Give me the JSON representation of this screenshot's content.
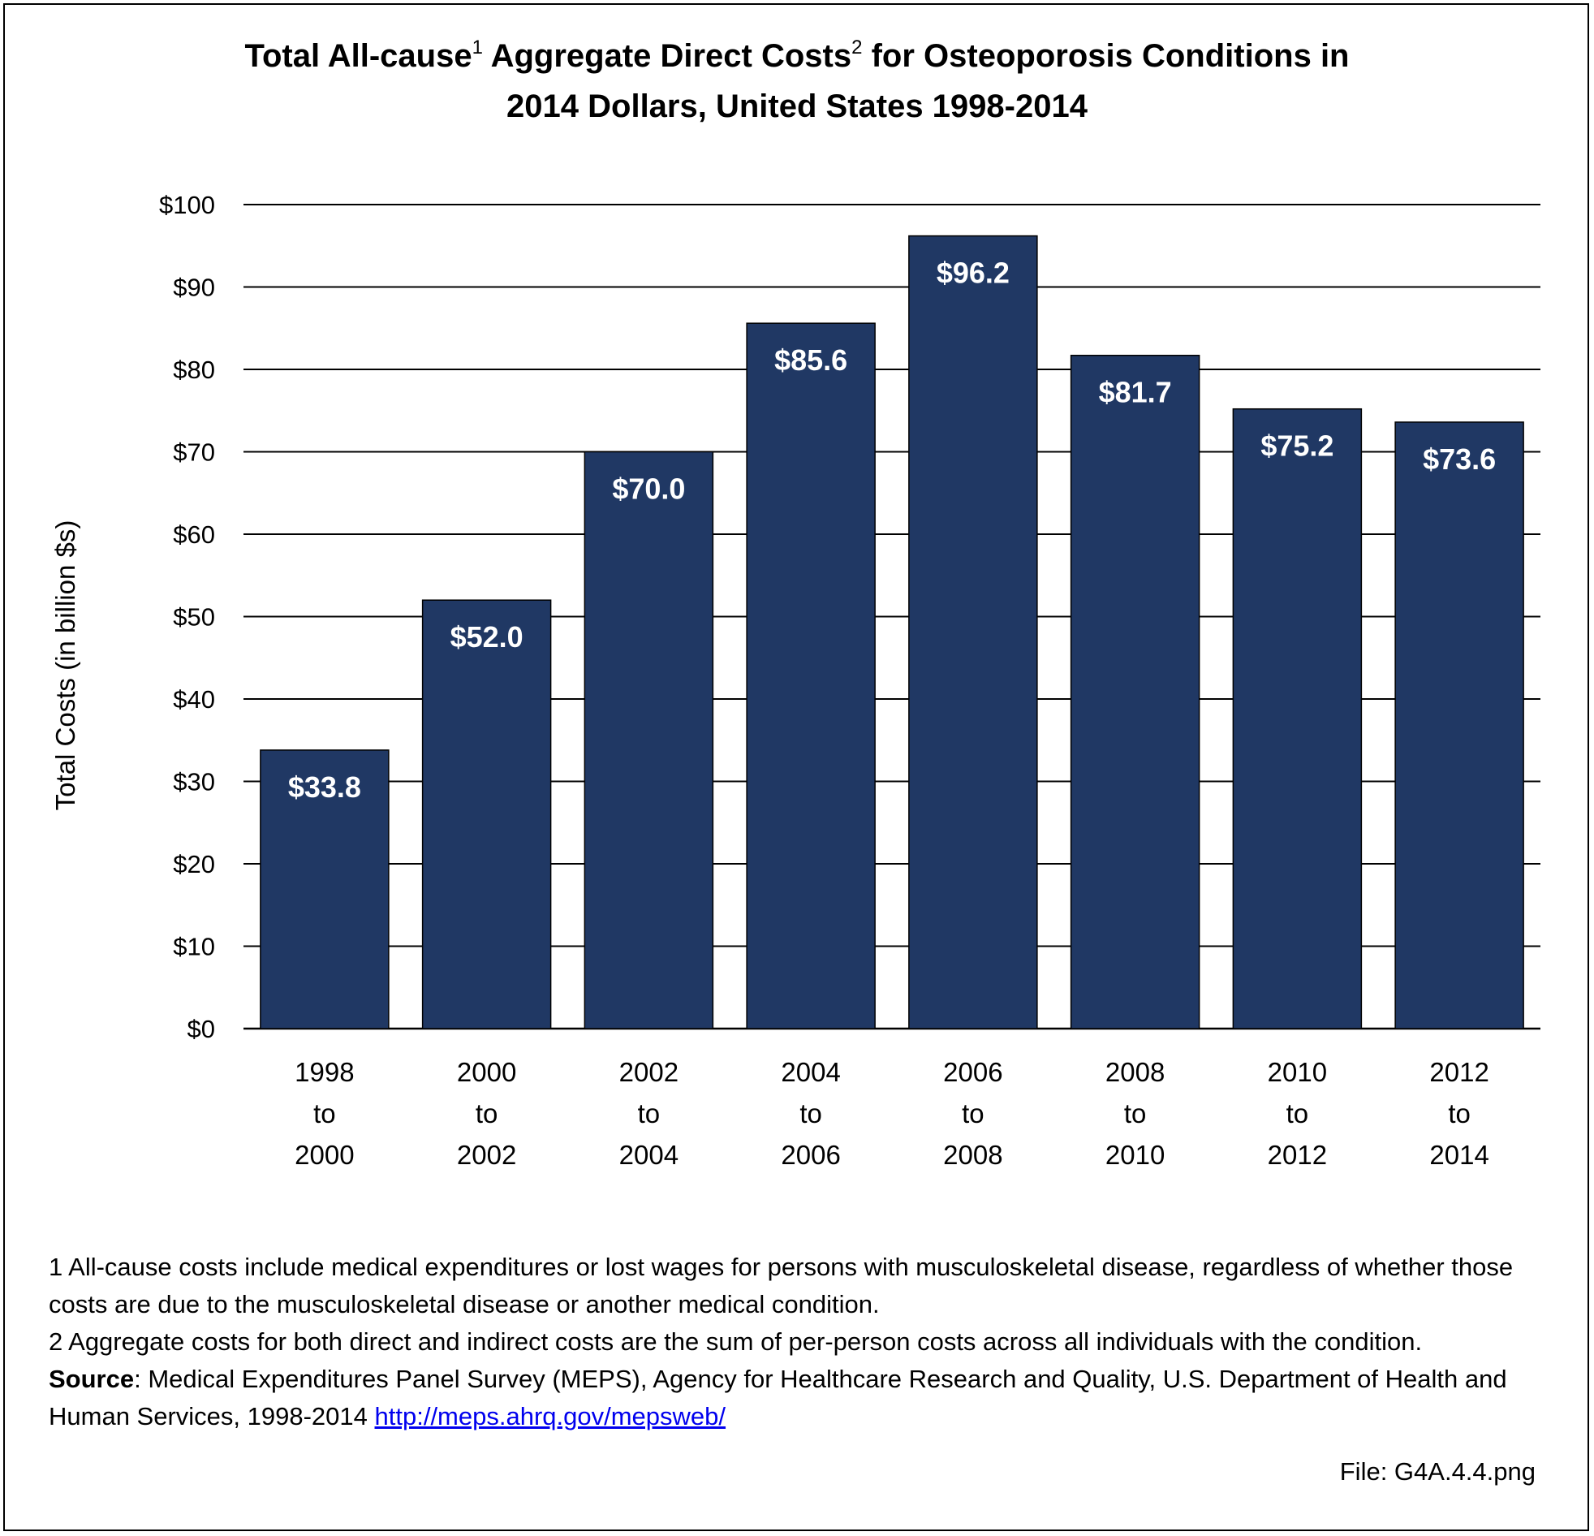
{
  "title": {
    "part1": "Total All-cause",
    "sup1": "1",
    "part2": " Aggregate Direct Costs",
    "sup2": "2",
    "part3": " for Osteoporosis Conditions in",
    "line2": "2014 Dollars, United States 1998-2014"
  },
  "chart_data": {
    "type": "bar",
    "categories": [
      [
        "1998",
        "to",
        "2000"
      ],
      [
        "2000",
        "to",
        "2002"
      ],
      [
        "2002",
        "to",
        "2004"
      ],
      [
        "2004",
        "to",
        "2006"
      ],
      [
        "2006",
        "to",
        "2008"
      ],
      [
        "2008",
        "to",
        "2010"
      ],
      [
        "2010",
        "to",
        "2012"
      ],
      [
        "2012",
        "to",
        "2014"
      ]
    ],
    "values": [
      33.8,
      52.0,
      70.0,
      85.6,
      96.2,
      81.7,
      75.2,
      73.6
    ],
    "data_labels": [
      "$33.8",
      "$52.0",
      "$70.0",
      "$85.6",
      "$96.2",
      "$81.7",
      "$75.2",
      "$73.6"
    ],
    "ylabel": "Total Costs (in billion $s)",
    "ylim": [
      0,
      100
    ],
    "yticks": [
      0,
      10,
      20,
      30,
      40,
      50,
      60,
      70,
      80,
      90,
      100
    ],
    "ytick_labels": [
      "$0",
      "$10",
      "$20",
      "$30",
      "$40",
      "$50",
      "$60",
      "$70",
      "$80",
      "$90",
      "$100"
    ],
    "grid": true,
    "legend": "none",
    "bar_color": "#203864",
    "label_color": "#ffffff"
  },
  "footnotes": {
    "note1": "1  All-cause costs include medical expenditures or lost wages for persons with musculoskeletal disease, regardless of whether those costs are due to the musculoskeletal disease or another medical condition.",
    "note2": "2  Aggregate costs for both direct and indirect costs are the sum of per-person costs across all individuals with the condition.",
    "source_label": "Source",
    "source_text": ": Medical Expenditures Panel Survey (MEPS), Agency for Healthcare Research and Quality, U.S. Department of Health and Human Services, 1998-2014 ",
    "source_link": "http://meps.ahrq.gov/mepsweb/"
  },
  "file_label": "File: G4A.4.4.png"
}
